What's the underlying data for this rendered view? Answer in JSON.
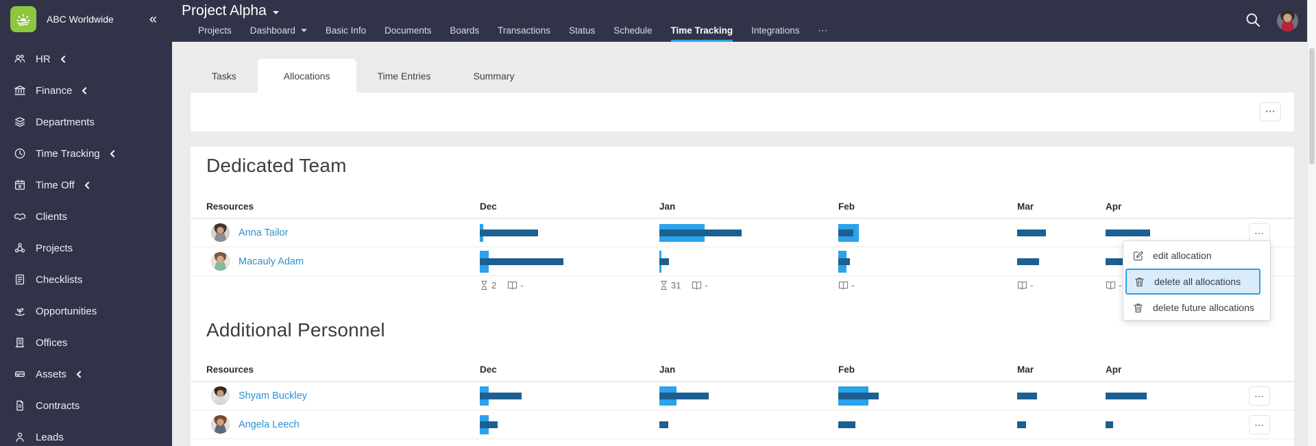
{
  "colors": {
    "sidebar_bg": "#313449",
    "accent_blue": "#2da0e8",
    "bar_dark": "#1d5f90",
    "bar_light": "#2aa2ec",
    "link": "#2e8fd2",
    "menu_highlight_bg": "#d9ecfa",
    "page_bg": "#ebebeb",
    "logo_green": "#8dc63f"
  },
  "brand": {
    "company": "ABC Worldwide",
    "logo_icon": "sunrise-icon",
    "collapse_icon": "«"
  },
  "sidebar": {
    "items": [
      {
        "label": "HR",
        "icon": "people-icon",
        "expandable": true
      },
      {
        "label": "Finance",
        "icon": "bank-icon",
        "expandable": true
      },
      {
        "label": "Departments",
        "icon": "layers-icon",
        "expandable": false
      },
      {
        "label": "Time Tracking",
        "icon": "clock-icon",
        "expandable": true
      },
      {
        "label": "Time Off",
        "icon": "calendar-x-icon",
        "expandable": true
      },
      {
        "label": "Clients",
        "icon": "handshake-icon",
        "expandable": false
      },
      {
        "label": "Projects",
        "icon": "network-icon",
        "expandable": false
      },
      {
        "label": "Checklists",
        "icon": "checklist-icon",
        "expandable": false
      },
      {
        "label": "Opportunities",
        "icon": "sprout-icon",
        "expandable": false
      },
      {
        "label": "Offices",
        "icon": "building-icon",
        "expandable": false
      },
      {
        "label": "Assets",
        "icon": "drive-icon",
        "expandable": true
      },
      {
        "label": "Contracts",
        "icon": "contract-icon",
        "expandable": false
      },
      {
        "label": "Leads",
        "icon": "person-icon",
        "expandable": false
      }
    ]
  },
  "header": {
    "project_title": "Project Alpha",
    "nav": [
      {
        "label": "Projects"
      },
      {
        "label": "Dashboard",
        "has_caret": true
      },
      {
        "label": "Basic Info"
      },
      {
        "label": "Documents"
      },
      {
        "label": "Boards"
      },
      {
        "label": "Transactions"
      },
      {
        "label": "Status"
      },
      {
        "label": "Schedule"
      },
      {
        "label": "Time Tracking",
        "active": true
      },
      {
        "label": "Integrations"
      },
      {
        "label": "⋯"
      }
    ],
    "search_icon": "search-icon",
    "user_avatar": "avatar"
  },
  "subtabs": [
    {
      "label": "Tasks"
    },
    {
      "label": "Allocations",
      "active": true
    },
    {
      "label": "Time Entries"
    },
    {
      "label": "Summary"
    }
  ],
  "toolbar": {
    "more_label": "⋯"
  },
  "sections": [
    {
      "title": "Dedicated Team",
      "columns": [
        "Resources",
        "Dec",
        "Jan",
        "Feb",
        "Mar",
        "Apr"
      ],
      "rows": [
        {
          "name": "Anna Tailor",
          "bars": [
            {
              "lw": 5,
              "lh": 26,
              "dw": 85
            },
            {
              "lw": 66,
              "lh": 26,
              "dw": 120
            },
            {
              "lw": 30,
              "lh": 26,
              "dw": 22
            },
            {
              "lw": 0,
              "lh": 0,
              "dw": 42
            },
            {
              "lw": 0,
              "lh": 0,
              "dw": 65
            }
          ]
        },
        {
          "name": "Macauly Adam",
          "bars": [
            {
              "lw": 13,
              "lh": 32,
              "dw": 122
            },
            {
              "lw": 3,
              "lh": 32,
              "dw": 14
            },
            {
              "lw": 12,
              "lh": 32,
              "dw": 17
            },
            {
              "lw": 0,
              "lh": 0,
              "dw": 32
            },
            {
              "lw": 0,
              "lh": 0,
              "dw": 33
            }
          ]
        }
      ],
      "totals": [
        {
          "hours": "2",
          "scheduled": "-"
        },
        {
          "hours": "31",
          "scheduled": "-"
        },
        {
          "scheduled": "-"
        },
        {
          "scheduled": "-"
        },
        {
          "scheduled": "-"
        }
      ]
    },
    {
      "title": "Additional Personnel",
      "columns": [
        "Resources",
        "Dec",
        "Jan",
        "Feb",
        "Mar",
        "Apr"
      ],
      "rows": [
        {
          "name": "Shyam Buckley",
          "bars": [
            {
              "lw": 13,
              "lh": 28,
              "dw": 61
            },
            {
              "lw": 25,
              "lh": 28,
              "dw": 72
            },
            {
              "lw": 44,
              "lh": 28,
              "dw": 59
            },
            {
              "lw": 0,
              "lh": 0,
              "dw": 29
            },
            {
              "lw": 0,
              "lh": 0,
              "dw": 60
            }
          ]
        },
        {
          "name": "Angela Leech",
          "bars": [
            {
              "lw": 13,
              "lh": 28,
              "dw": 26
            },
            {
              "lw": 0,
              "lh": 0,
              "dw": 13
            },
            {
              "lw": 0,
              "lh": 0,
              "dw": 25
            },
            {
              "lw": 0,
              "lh": 0,
              "dw": 13
            },
            {
              "lw": 0,
              "lh": 0,
              "dw": 11
            }
          ]
        }
      ]
    }
  ],
  "context_menu": {
    "items": [
      {
        "label": "edit allocation",
        "icon": "edit-icon",
        "highlighted": false
      },
      {
        "label": "delete all allocations",
        "icon": "trash-icon",
        "highlighted": true
      },
      {
        "label": "delete future allocations",
        "icon": "trash-icon",
        "highlighted": false
      }
    ]
  }
}
